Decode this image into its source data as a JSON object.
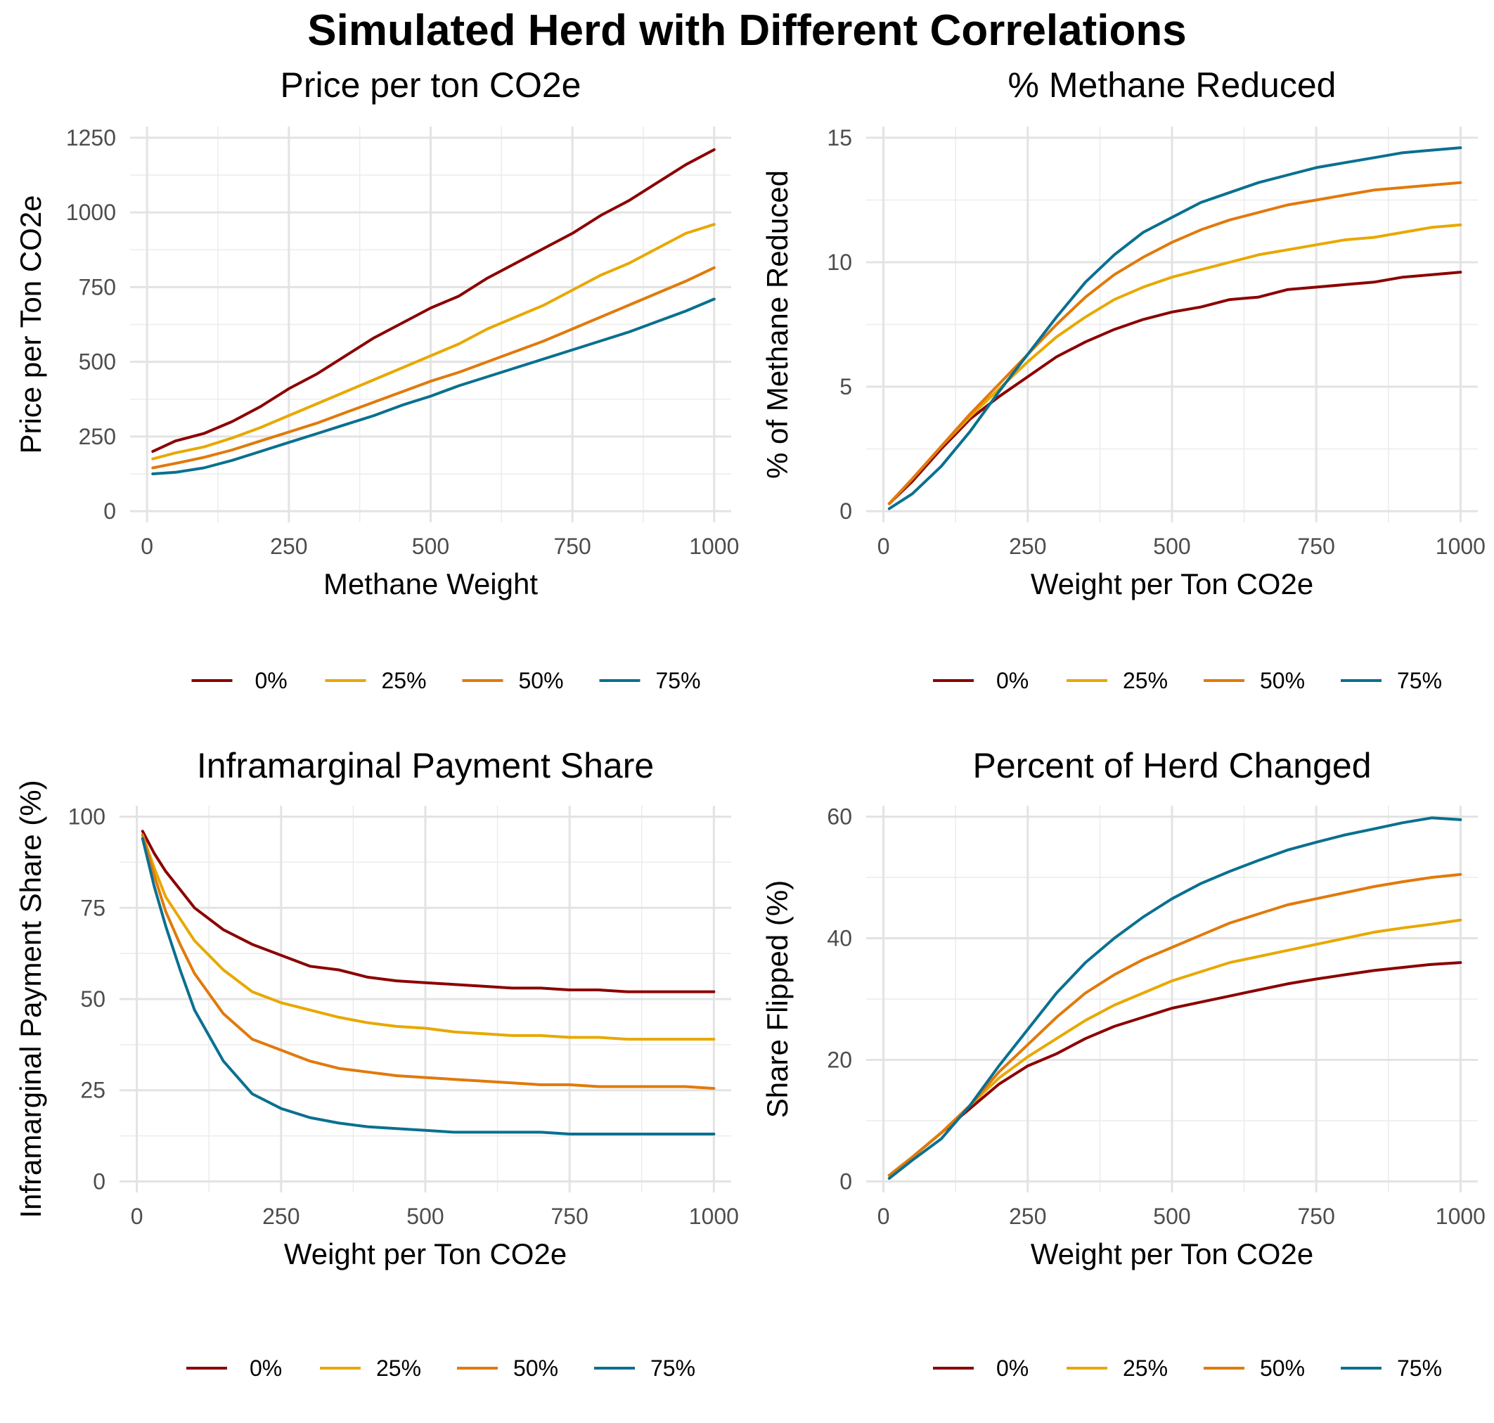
{
  "title": "Simulated Herd with Different Correlations",
  "legend_labels": [
    "0%",
    "25%",
    "50%",
    "75%"
  ],
  "colors": {
    "0%": "#8b0000",
    "25%": "#e8a800",
    "50%": "#e07a0c",
    "75%": "#0a7090"
  },
  "chart_data": [
    {
      "type": "line",
      "title": "Price per ton CO2e",
      "xlabel": "Methane Weight",
      "ylabel": "Price per Ton CO2e",
      "xlim": [
        0,
        1000
      ],
      "ylim": [
        0,
        1250
      ],
      "xticks": [
        0,
        250,
        500,
        750,
        1000
      ],
      "yticks": [
        0,
        250,
        500,
        750,
        1000,
        1250
      ],
      "grid": true,
      "legend": "bottom",
      "x": [
        10,
        50,
        100,
        150,
        200,
        250,
        300,
        350,
        400,
        450,
        500,
        550,
        600,
        650,
        700,
        750,
        800,
        850,
        900,
        950,
        1000
      ],
      "series": [
        {
          "name": "0%",
          "values": [
            200,
            235,
            260,
            300,
            350,
            410,
            460,
            520,
            580,
            630,
            680,
            720,
            780,
            830,
            880,
            930,
            990,
            1040,
            1100,
            1160,
            1210
          ]
        },
        {
          "name": "25%",
          "values": [
            175,
            195,
            215,
            245,
            280,
            320,
            360,
            400,
            440,
            480,
            520,
            560,
            610,
            650,
            690,
            740,
            790,
            830,
            880,
            930,
            960
          ]
        },
        {
          "name": "50%",
          "values": [
            145,
            160,
            180,
            205,
            235,
            265,
            295,
            330,
            365,
            400,
            435,
            465,
            500,
            535,
            570,
            610,
            650,
            690,
            730,
            770,
            815
          ]
        },
        {
          "name": "75%",
          "values": [
            125,
            130,
            145,
            170,
            200,
            230,
            260,
            290,
            320,
            355,
            385,
            420,
            450,
            480,
            510,
            540,
            570,
            600,
            635,
            670,
            710
          ]
        }
      ]
    },
    {
      "type": "line",
      "title": "% Methane Reduced",
      "xlabel": "Weight per Ton CO2e",
      "ylabel": "% of Methane Reduced",
      "xlim": [
        0,
        1000
      ],
      "ylim": [
        0,
        15
      ],
      "xticks": [
        0,
        250,
        500,
        750,
        1000
      ],
      "yticks": [
        0,
        5,
        10,
        15
      ],
      "grid": true,
      "legend": "bottom",
      "x": [
        10,
        50,
        100,
        150,
        200,
        250,
        300,
        350,
        400,
        450,
        500,
        550,
        600,
        650,
        700,
        750,
        800,
        850,
        900,
        950,
        1000
      ],
      "series": [
        {
          "name": "0%",
          "values": [
            0.3,
            1.2,
            2.5,
            3.7,
            4.6,
            5.4,
            6.2,
            6.8,
            7.3,
            7.7,
            8.0,
            8.2,
            8.5,
            8.6,
            8.9,
            9.0,
            9.1,
            9.2,
            9.4,
            9.5,
            9.6
          ]
        },
        {
          "name": "25%",
          "values": [
            0.3,
            1.3,
            2.6,
            3.8,
            4.9,
            6.0,
            7.0,
            7.8,
            8.5,
            9.0,
            9.4,
            9.7,
            10.0,
            10.3,
            10.5,
            10.7,
            10.9,
            11.0,
            11.2,
            11.4,
            11.5
          ]
        },
        {
          "name": "50%",
          "values": [
            0.3,
            1.3,
            2.6,
            3.9,
            5.1,
            6.3,
            7.5,
            8.6,
            9.5,
            10.2,
            10.8,
            11.3,
            11.7,
            12.0,
            12.3,
            12.5,
            12.7,
            12.9,
            13.0,
            13.1,
            13.2
          ]
        },
        {
          "name": "75%",
          "values": [
            0.1,
            0.7,
            1.8,
            3.2,
            4.8,
            6.3,
            7.8,
            9.2,
            10.3,
            11.2,
            11.8,
            12.4,
            12.8,
            13.2,
            13.5,
            13.8,
            14.0,
            14.2,
            14.4,
            14.5,
            14.6
          ]
        }
      ]
    },
    {
      "type": "line",
      "title": "Inframarginal Payment Share",
      "xlabel": "Weight per Ton CO2e",
      "ylabel": "Inframarginal Payment Share (%)",
      "xlim": [
        0,
        1000
      ],
      "ylim": [
        0,
        100
      ],
      "xticks": [
        0,
        250,
        500,
        750,
        1000
      ],
      "yticks": [
        0,
        25,
        50,
        75,
        100
      ],
      "grid": true,
      "legend": "bottom",
      "x": [
        10,
        30,
        50,
        75,
        100,
        150,
        200,
        250,
        300,
        350,
        400,
        450,
        500,
        550,
        600,
        650,
        700,
        750,
        800,
        850,
        900,
        950,
        1000
      ],
      "series": [
        {
          "name": "0%",
          "values": [
            96,
            90,
            85,
            80,
            75,
            69,
            65,
            62,
            59,
            58,
            56,
            55,
            54.5,
            54,
            53.5,
            53,
            53,
            52.5,
            52.5,
            52,
            52,
            52,
            52
          ]
        },
        {
          "name": "25%",
          "values": [
            95,
            86,
            78,
            72,
            66,
            58,
            52,
            49,
            47,
            45,
            43.5,
            42.5,
            42,
            41,
            40.5,
            40,
            40,
            39.5,
            39.5,
            39,
            39,
            39,
            39
          ]
        },
        {
          "name": "50%",
          "values": [
            95,
            84,
            74,
            65,
            57,
            46,
            39,
            36,
            33,
            31,
            30,
            29,
            28.5,
            28,
            27.5,
            27,
            26.5,
            26.5,
            26,
            26,
            26,
            26,
            25.5
          ]
        },
        {
          "name": "75%",
          "values": [
            94,
            81,
            70,
            58,
            47,
            33,
            24,
            20,
            17.5,
            16,
            15,
            14.5,
            14,
            13.5,
            13.5,
            13.5,
            13.5,
            13,
            13,
            13,
            13,
            13,
            13
          ]
        }
      ]
    },
    {
      "type": "line",
      "title": "Percent of Herd Changed",
      "xlabel": "Weight per Ton CO2e",
      "ylabel": "Share Flipped (%)",
      "xlim": [
        0,
        1000
      ],
      "ylim": [
        0,
        60
      ],
      "xticks": [
        0,
        250,
        500,
        750,
        1000
      ],
      "yticks": [
        0,
        20,
        40,
        60
      ],
      "grid": true,
      "legend": "bottom",
      "x": [
        10,
        50,
        100,
        150,
        200,
        250,
        300,
        350,
        400,
        450,
        500,
        550,
        600,
        650,
        700,
        750,
        800,
        850,
        900,
        950,
        1000
      ],
      "series": [
        {
          "name": "0%",
          "values": [
            1,
            4,
            8,
            12,
            16,
            19,
            21,
            23.5,
            25.5,
            27,
            28.5,
            29.5,
            30.5,
            31.5,
            32.5,
            33.3,
            34,
            34.7,
            35.2,
            35.7,
            36
          ]
        },
        {
          "name": "25%",
          "values": [
            1,
            4,
            8,
            12.5,
            17,
            20.5,
            23.5,
            26.5,
            29,
            31,
            33,
            34.5,
            36,
            37,
            38,
            39,
            40,
            41,
            41.7,
            42.3,
            43
          ]
        },
        {
          "name": "50%",
          "values": [
            1,
            4,
            8,
            12.5,
            18,
            22.5,
            27,
            31,
            34,
            36.5,
            38.5,
            40.5,
            42.5,
            44,
            45.5,
            46.5,
            47.5,
            48.5,
            49.3,
            50,
            50.5
          ]
        },
        {
          "name": "75%",
          "values": [
            0.5,
            3.5,
            7,
            12.5,
            19,
            25,
            31,
            36,
            40,
            43.5,
            46.5,
            49,
            51,
            52.8,
            54.5,
            55.8,
            57,
            58,
            59,
            59.8,
            59.5
          ]
        }
      ]
    }
  ]
}
